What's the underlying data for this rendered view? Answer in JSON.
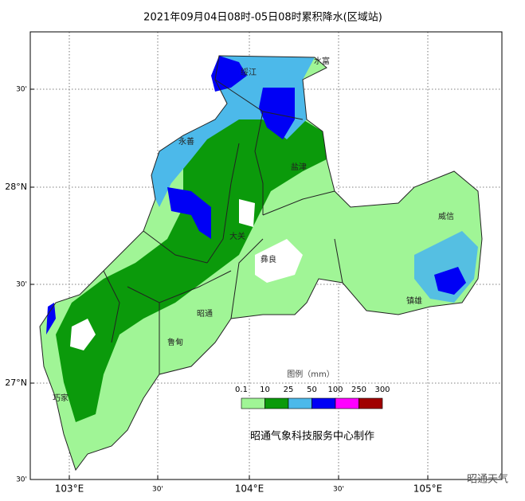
{
  "title": "2021年09月04日08时-05日08时累积降水(区域站)",
  "y_axis_labels": [
    "30'",
    "28°N",
    "30'",
    "27°N",
    "30'"
  ],
  "x_axis_labels": [
    "103°E",
    "30'",
    "104°E",
    "30'",
    "105°E"
  ],
  "places": [
    "水富",
    "绥江",
    "永善",
    "盐津",
    "大关",
    "彝良",
    "威信",
    "镇雄",
    "昭通",
    "鲁甸",
    "巧家"
  ],
  "legend": {
    "title": "图例（mm）",
    "labels": [
      "0.1",
      "10",
      "25",
      "50",
      "100",
      "250",
      "300"
    ],
    "colors": [
      "#a0f596",
      "#0b9a0b",
      "#4cb9ea",
      "#0000f5",
      "#ff00ff",
      "#a00000"
    ]
  },
  "credit": "昭通气象科技服务中心制作",
  "watermark": "昭通天气"
}
